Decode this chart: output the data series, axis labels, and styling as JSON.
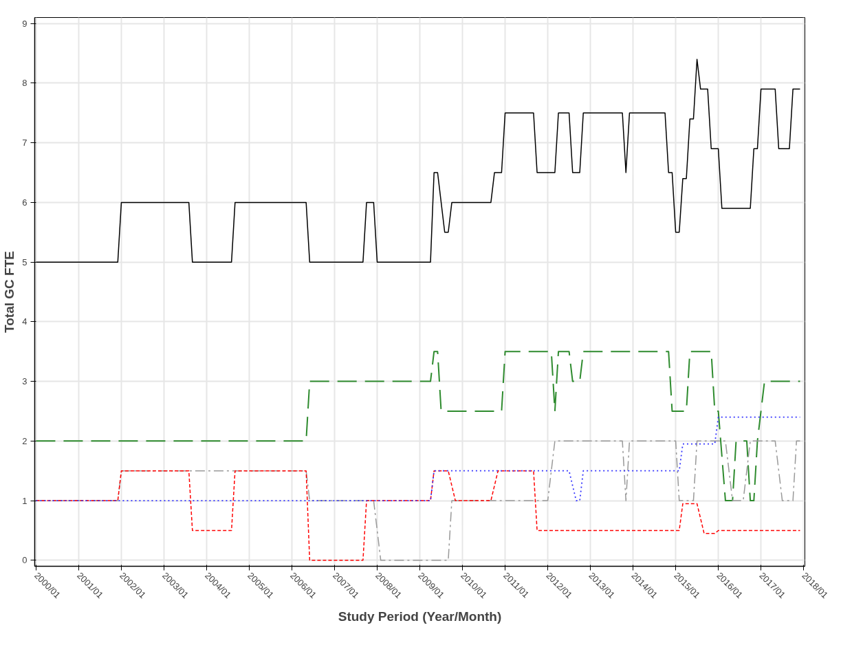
{
  "chart_data": {
    "type": "line",
    "xlabel": "Study Period (Year/Month)",
    "ylabel": "Total GC FTE",
    "xlim": [
      "1999-12-20",
      "2018-01-12"
    ],
    "ylim": [
      -0.1,
      9.1
    ],
    "xticks": [
      {
        "value": "2000-01",
        "label": "2000/01"
      },
      {
        "value": "2001-01",
        "label": "2001/01"
      },
      {
        "value": "2002-01",
        "label": "2002/01"
      },
      {
        "value": "2003-01",
        "label": "2003/01"
      },
      {
        "value": "2004-01",
        "label": "2004/01"
      },
      {
        "value": "2005-01",
        "label": "2005/01"
      },
      {
        "value": "2006-01",
        "label": "2006/01"
      },
      {
        "value": "2007-01",
        "label": "2007/01"
      },
      {
        "value": "2008-01",
        "label": "2008/01"
      },
      {
        "value": "2009-01",
        "label": "2009/01"
      },
      {
        "value": "2010-01",
        "label": "2010/01"
      },
      {
        "value": "2011-01",
        "label": "2011/01"
      },
      {
        "value": "2012-01",
        "label": "2012/01"
      },
      {
        "value": "2013-01",
        "label": "2013/01"
      },
      {
        "value": "2014-01",
        "label": "2014/01"
      },
      {
        "value": "2015-01",
        "label": "2015/01"
      },
      {
        "value": "2016-01",
        "label": "2016/01"
      },
      {
        "value": "2017-01",
        "label": "2017/01"
      },
      {
        "value": "2018-01",
        "label": "2018/01"
      }
    ],
    "yticks": [
      0,
      1,
      2,
      3,
      4,
      5,
      6,
      7,
      8,
      9
    ],
    "grid": true,
    "marker": "none",
    "series": [
      {
        "color": "#000000",
        "line_style": "solid",
        "x": [
          "2000-01",
          "2001-12",
          "2002-01",
          "2003-08",
          "2003-09",
          "2004-08",
          "2004-09",
          "2006-05",
          "2006-06",
          "2007-09",
          "2007-10",
          "2007-12",
          "2008-01",
          "2009-04",
          "2009-05",
          "2009-06",
          "2009-08",
          "2009-09",
          "2009-10",
          "2010-09",
          "2010-10",
          "2010-12",
          "2011-01",
          "2011-09",
          "2011-10",
          "2012-03",
          "2012-04",
          "2012-07",
          "2012-08",
          "2012-10",
          "2012-11",
          "2013-10",
          "2013-11",
          "2013-12",
          "2014-10",
          "2014-11",
          "2014-12",
          "2015-01",
          "2015-02",
          "2015-03",
          "2015-04",
          "2015-05",
          "2015-06",
          "2015-07",
          "2015-08",
          "2015-10",
          "2015-11",
          "2016-01",
          "2016-02",
          "2016-10",
          "2016-11",
          "2016-12",
          "2017-01",
          "2017-05",
          "2017-06",
          "2017-09",
          "2017-10",
          "2017-12"
        ],
        "values": [
          5,
          5,
          6,
          6,
          5,
          5,
          6,
          6,
          5,
          5,
          6,
          6,
          5,
          5,
          6.5,
          6.5,
          5.5,
          5.5,
          6,
          6,
          6.5,
          6.5,
          7.5,
          7.5,
          6.5,
          6.5,
          7.5,
          7.5,
          6.5,
          6.5,
          7.5,
          7.5,
          6.5,
          7.5,
          7.5,
          6.5,
          6.5,
          5.5,
          5.5,
          6.4,
          6.4,
          7.4,
          7.4,
          8.4,
          7.9,
          7.9,
          6.9,
          6.9,
          5.9,
          5.9,
          6.9,
          6.9,
          7.9,
          7.9,
          6.9,
          6.9,
          7.9,
          7.9
        ]
      },
      {
        "color": "#2e8b2e",
        "line_style": "longdash",
        "x": [
          "2000-01",
          "2006-05",
          "2006-06",
          "2009-04",
          "2009-05",
          "2009-06",
          "2009-07",
          "2010-12",
          "2011-01",
          "2012-02",
          "2012-03",
          "2012-04",
          "2012-07",
          "2012-08",
          "2012-10",
          "2012-11",
          "2014-11",
          "2014-12",
          "2015-04",
          "2015-05",
          "2015-11",
          "2015-12",
          "2016-01",
          "2016-03",
          "2016-05",
          "2016-06",
          "2016-09",
          "2016-10",
          "2016-11",
          "2016-12",
          "2017-02",
          "2017-12"
        ],
        "values": [
          2,
          2,
          3,
          3,
          3.5,
          3.5,
          2.5,
          2.5,
          3.5,
          3.5,
          2.5,
          3.5,
          3.5,
          3,
          3,
          3.5,
          3.5,
          2.5,
          2.5,
          3.5,
          3.5,
          2.5,
          2.5,
          1,
          1,
          2,
          2,
          1,
          1,
          2,
          3,
          3
        ]
      },
      {
        "color": "#999999",
        "line_style": "dashdot",
        "x": [
          "2000-01",
          "2001-12",
          "2002-01",
          "2006-05",
          "2006-06",
          "2007-12",
          "2008-02",
          "2009-09",
          "2009-10",
          "2012-01",
          "2012-03",
          "2013-10",
          "2013-11",
          "2013-12",
          "2015-01",
          "2015-02",
          "2015-06",
          "2015-07",
          "2016-03",
          "2016-05",
          "2016-08",
          "2016-10",
          "2017-05",
          "2017-07",
          "2017-10",
          "2017-11",
          "2017-12"
        ],
        "values": [
          1,
          1,
          1.5,
          1.5,
          1,
          1,
          0,
          0,
          1,
          1,
          2,
          2,
          1,
          2,
          2,
          1,
          1,
          2,
          2,
          1,
          1,
          2,
          2,
          1,
          1,
          2,
          2
        ]
      },
      {
        "color": "#ff0000",
        "line_style": "dashed",
        "x": [
          "2000-01",
          "2001-12",
          "2002-01",
          "2003-08",
          "2003-09",
          "2004-08",
          "2004-09",
          "2006-05",
          "2006-06",
          "2007-09",
          "2007-10",
          "2009-04",
          "2009-05",
          "2009-09",
          "2009-11",
          "2010-09",
          "2010-11",
          "2011-09",
          "2011-10",
          "2015-02",
          "2015-03",
          "2015-07",
          "2015-09",
          "2015-12",
          "2016-01",
          "2017-12"
        ],
        "values": [
          1,
          1,
          1.5,
          1.5,
          0.5,
          0.5,
          1.5,
          1.5,
          0,
          0,
          1,
          1,
          1.5,
          1.5,
          1,
          1,
          1.5,
          1.5,
          0.5,
          0.5,
          0.95,
          0.95,
          0.45,
          0.45,
          0.5,
          0.5
        ]
      },
      {
        "color": "#3333ff",
        "line_style": "dotted",
        "x": [
          "2000-01",
          "2009-04",
          "2009-05",
          "2012-07",
          "2012-09",
          "2012-10",
          "2012-11",
          "2015-02",
          "2015-03",
          "2015-12",
          "2016-01",
          "2017-12"
        ],
        "values": [
          1,
          1,
          1.5,
          1.5,
          1,
          1,
          1.5,
          1.5,
          1.95,
          1.95,
          2.4,
          2.4
        ]
      }
    ]
  }
}
